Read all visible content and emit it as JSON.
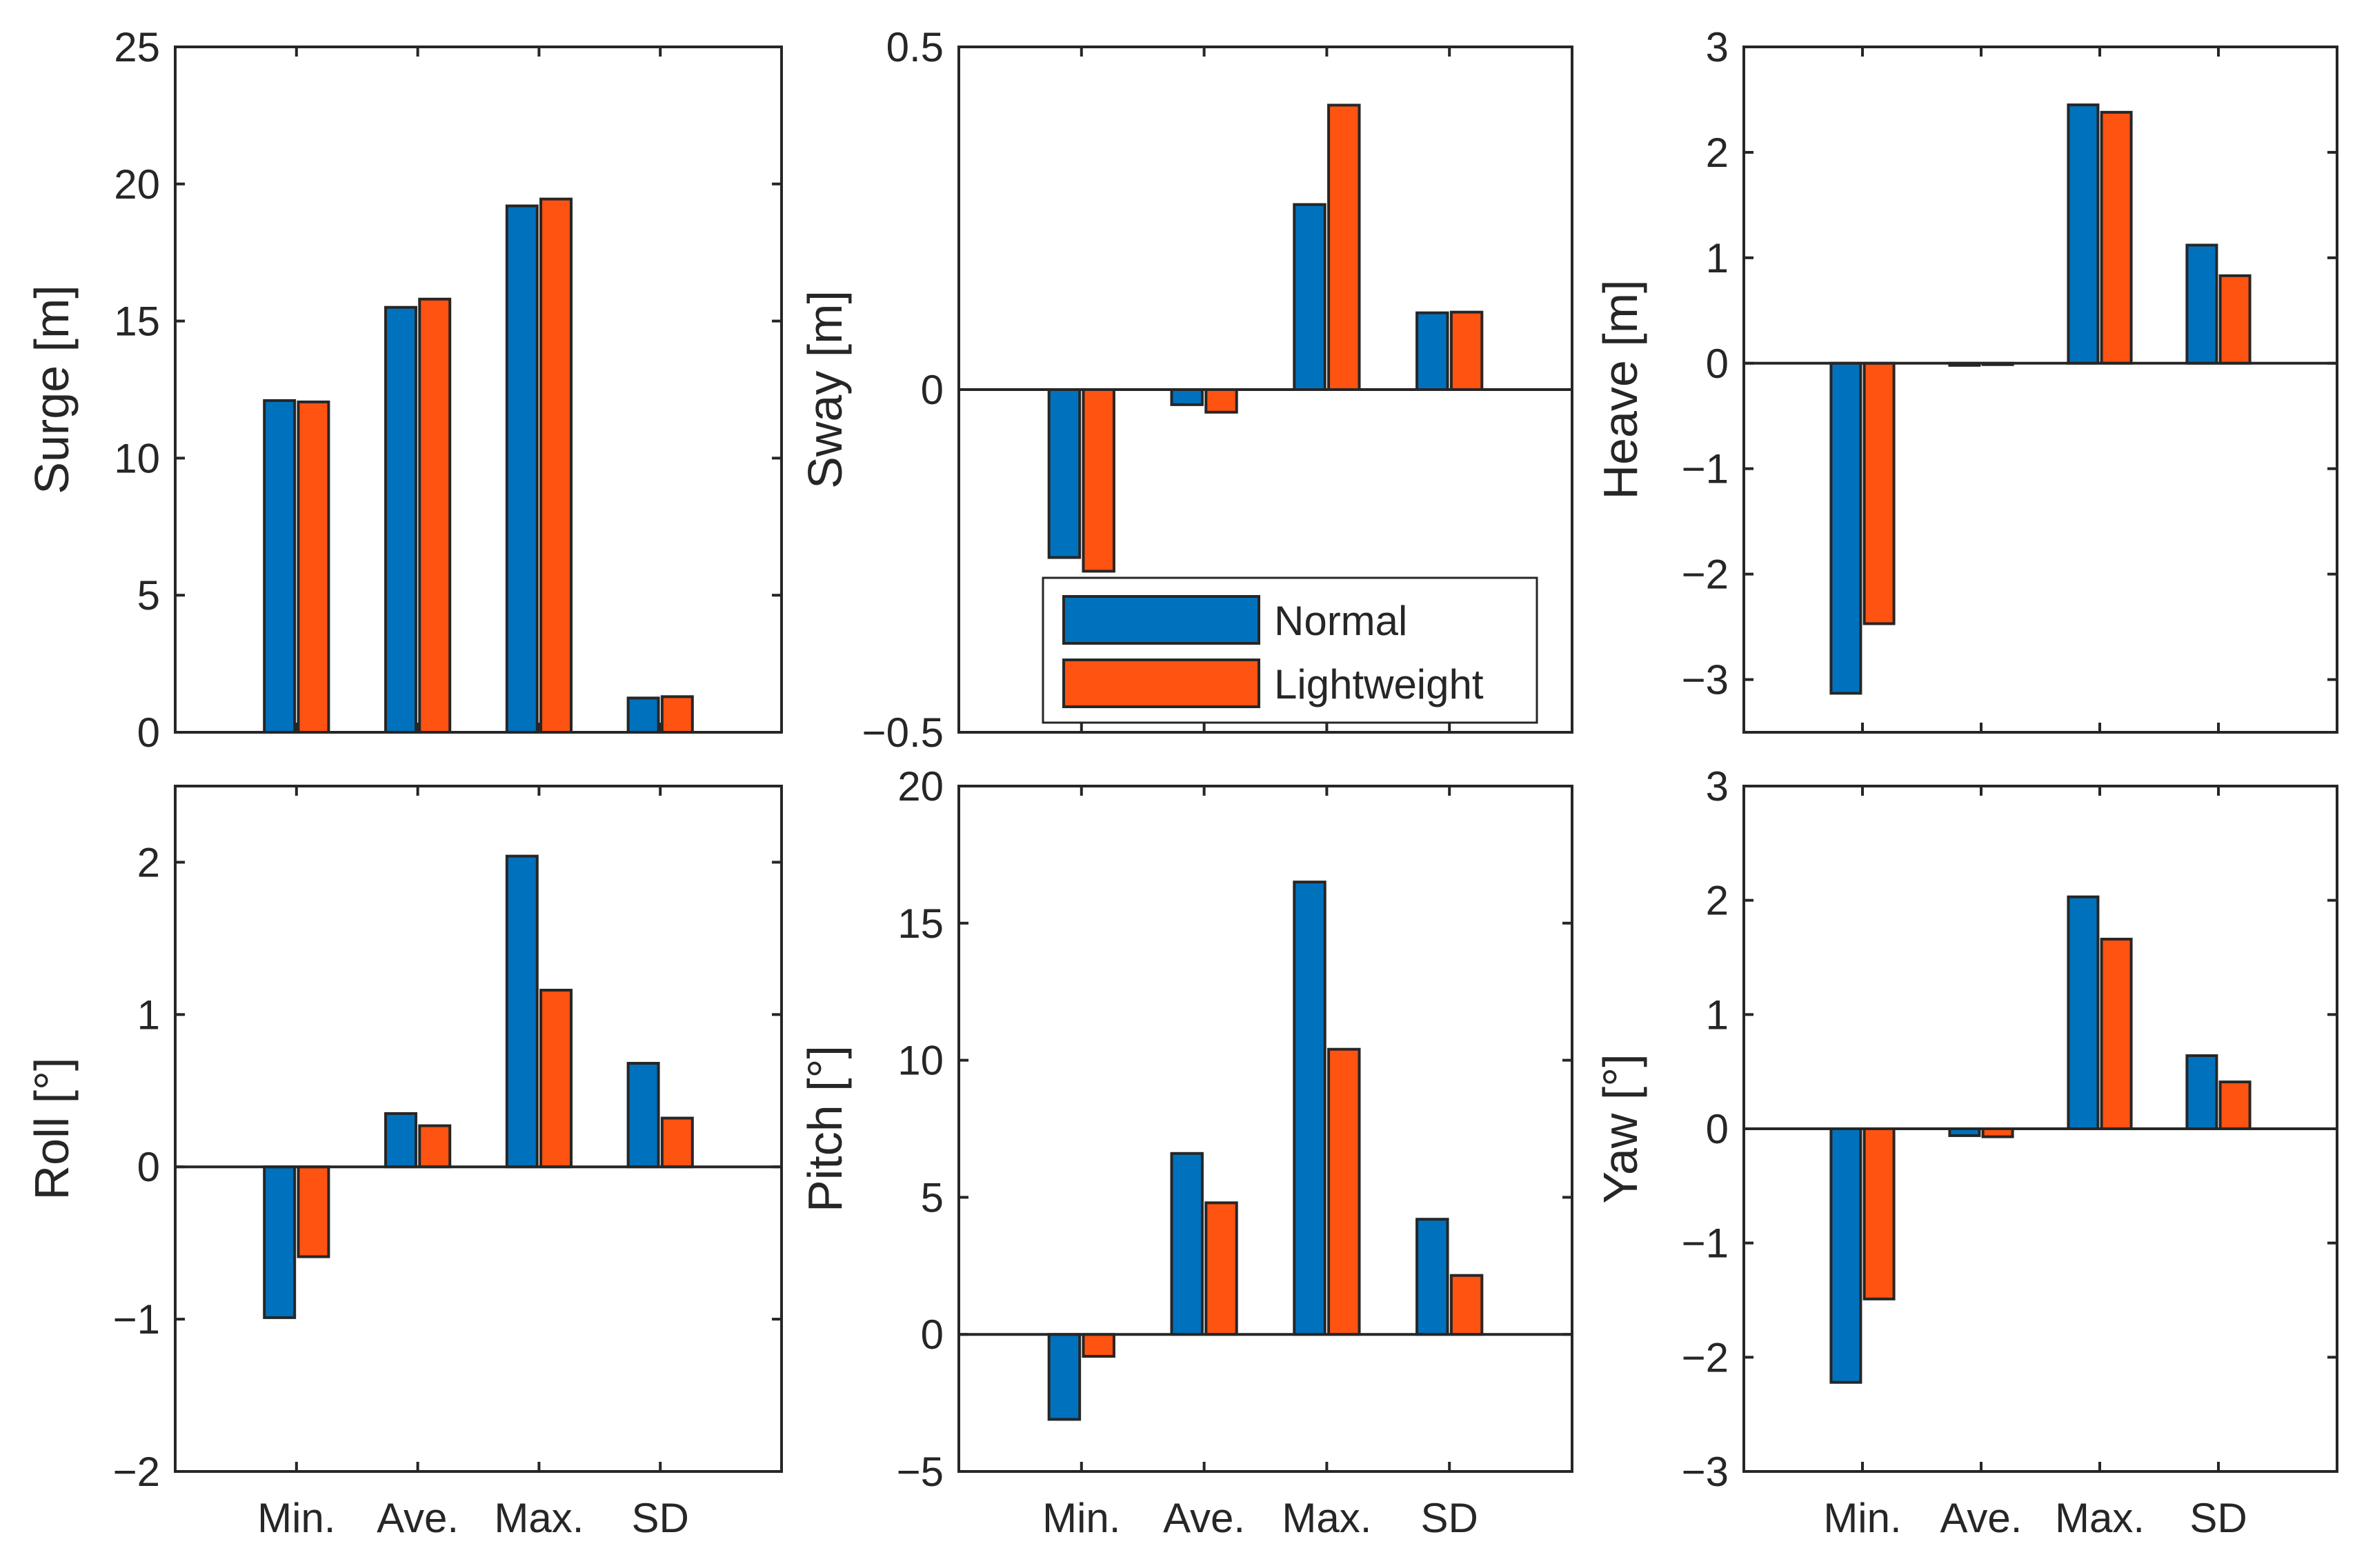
{
  "colors": {
    "normal": "#0072BD",
    "lightweight": "#FF5311",
    "axis": "#262626",
    "background": "#ffffff"
  },
  "legend": {
    "labels": [
      "Normal",
      "Lightweight"
    ],
    "placement": "inside-bottom-center of Sway panel"
  },
  "chart_data": [
    {
      "type": "bar",
      "ylabel": "Surge [m]",
      "categories": [
        "Min.",
        "Ave.",
        "Max.",
        "SD"
      ],
      "show_xticklabels": false,
      "ylim": [
        0,
        25
      ],
      "yticks": [
        "0",
        "5",
        "10",
        "15",
        "20",
        "25"
      ],
      "ytick_values": [
        0,
        5,
        10,
        15,
        20,
        25
      ],
      "series": [
        {
          "name": "Normal",
          "values": [
            12.1,
            15.5,
            19.2,
            1.25
          ]
        },
        {
          "name": "Lightweight",
          "values": [
            12.05,
            15.8,
            19.45,
            1.3
          ]
        }
      ]
    },
    {
      "type": "bar",
      "ylabel": "Sway [m]",
      "categories": [
        "Min.",
        "Ave.",
        "Max.",
        "SD"
      ],
      "show_xticklabels": false,
      "ylim": [
        -0.5,
        0.5
      ],
      "yticks": [
        "−0.5",
        "0",
        "0.5"
      ],
      "ytick_values": [
        -0.5,
        0,
        0.5
      ],
      "series": [
        {
          "name": "Normal",
          "values": [
            -0.245,
            -0.022,
            0.27,
            0.112
          ]
        },
        {
          "name": "Lightweight",
          "values": [
            -0.265,
            -0.033,
            0.415,
            0.113
          ]
        }
      ]
    },
    {
      "type": "bar",
      "ylabel": "Heave [m]",
      "categories": [
        "Min.",
        "Ave.",
        "Max.",
        "SD"
      ],
      "show_xticklabels": false,
      "ylim": [
        -3.5,
        3
      ],
      "yticks": [
        "−3",
        "−2",
        "−1",
        "0",
        "1",
        "2",
        "3"
      ],
      "ytick_values": [
        -3,
        -2,
        -1,
        0,
        1,
        2,
        3
      ],
      "series": [
        {
          "name": "Normal",
          "values": [
            -3.13,
            -0.02,
            2.45,
            1.12
          ]
        },
        {
          "name": "Lightweight",
          "values": [
            -2.47,
            -0.01,
            2.38,
            0.83
          ]
        }
      ]
    },
    {
      "type": "bar",
      "ylabel": "Roll [°]",
      "categories": [
        "Min.",
        "Ave.",
        "Max.",
        "SD"
      ],
      "show_xticklabels": true,
      "ylim": [
        -2,
        2.5
      ],
      "yticks": [
        "−2",
        "−1",
        "0",
        "1",
        "2"
      ],
      "ytick_values": [
        -2,
        -1,
        0,
        1,
        2
      ],
      "series": [
        {
          "name": "Normal",
          "values": [
            -0.99,
            0.35,
            2.04,
            0.68
          ]
        },
        {
          "name": "Lightweight",
          "values": [
            -0.59,
            0.27,
            1.16,
            0.32
          ]
        }
      ]
    },
    {
      "type": "bar",
      "ylabel": "Pitch [°]",
      "categories": [
        "Min.",
        "Ave.",
        "Max.",
        "SD"
      ],
      "show_xticklabels": true,
      "ylim": [
        -5,
        20
      ],
      "yticks": [
        "−5",
        "0",
        "5",
        "10",
        "15",
        "20"
      ],
      "ytick_values": [
        -5,
        0,
        5,
        10,
        15,
        20
      ],
      "series": [
        {
          "name": "Normal",
          "values": [
            -3.1,
            6.6,
            16.5,
            4.2
          ]
        },
        {
          "name": "Lightweight",
          "values": [
            -0.8,
            4.8,
            10.4,
            2.15
          ]
        }
      ]
    },
    {
      "type": "bar",
      "ylabel": "Yaw [°]",
      "categories": [
        "Min.",
        "Ave.",
        "Max.",
        "SD"
      ],
      "show_xticklabels": true,
      "ylim": [
        -3,
        3
      ],
      "yticks": [
        "−3",
        "−2",
        "−1",
        "0",
        "1",
        "2",
        "3"
      ],
      "ytick_values": [
        -3,
        -2,
        -1,
        0,
        1,
        2,
        3
      ],
      "series": [
        {
          "name": "Normal",
          "values": [
            -2.22,
            -0.06,
            2.03,
            0.64
          ]
        },
        {
          "name": "Lightweight",
          "values": [
            -1.49,
            -0.07,
            1.66,
            0.41
          ]
        }
      ]
    }
  ]
}
